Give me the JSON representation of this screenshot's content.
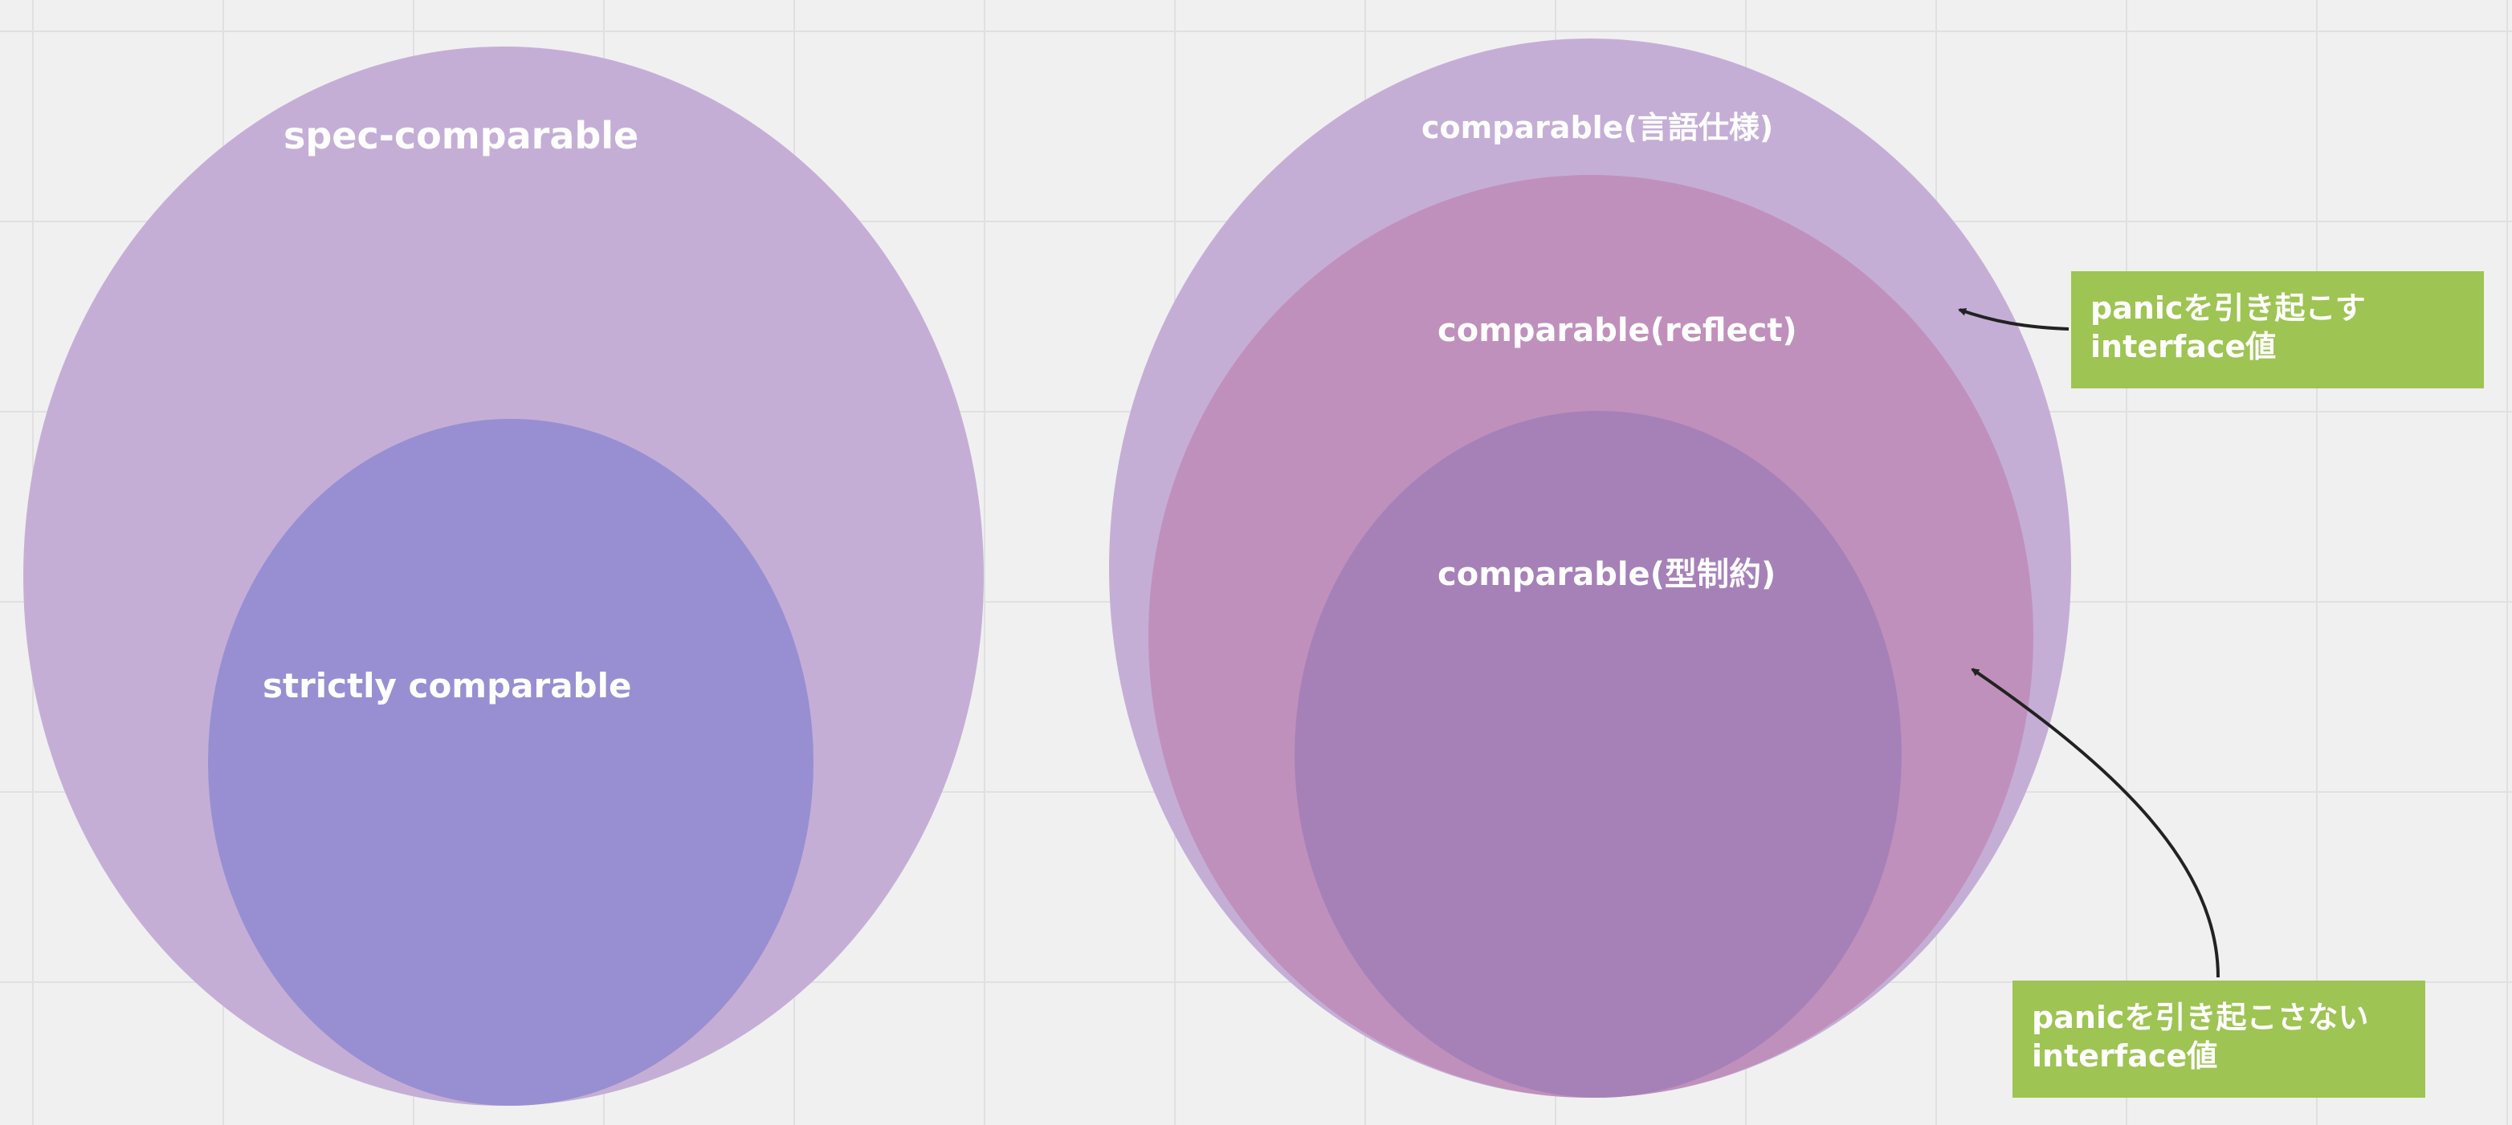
{
  "colors": {
    "background": "#f0f0f0",
    "grid": "#e0e0e0",
    "outer_set": "#c5aed6",
    "inner_left": "#988fd2",
    "middle_set": "#c090bc",
    "inner_right": "#a681b8",
    "note": "#9ec453",
    "text": "#ffffff",
    "arrow": "#222222"
  },
  "left_diagram": {
    "outer_label": "spec-comparable",
    "inner_label": "strictly comparable"
  },
  "right_diagram": {
    "outer_label": "comparable(言語仕様)",
    "middle_label": "comparable(reflect)",
    "inner_label": "comparable(型制約)"
  },
  "notes": {
    "panic": {
      "line1": "panicを引き起こす",
      "line2": "interface値"
    },
    "no_panic": {
      "line1": "panicを引き起こさない",
      "line2": "interface値"
    }
  }
}
